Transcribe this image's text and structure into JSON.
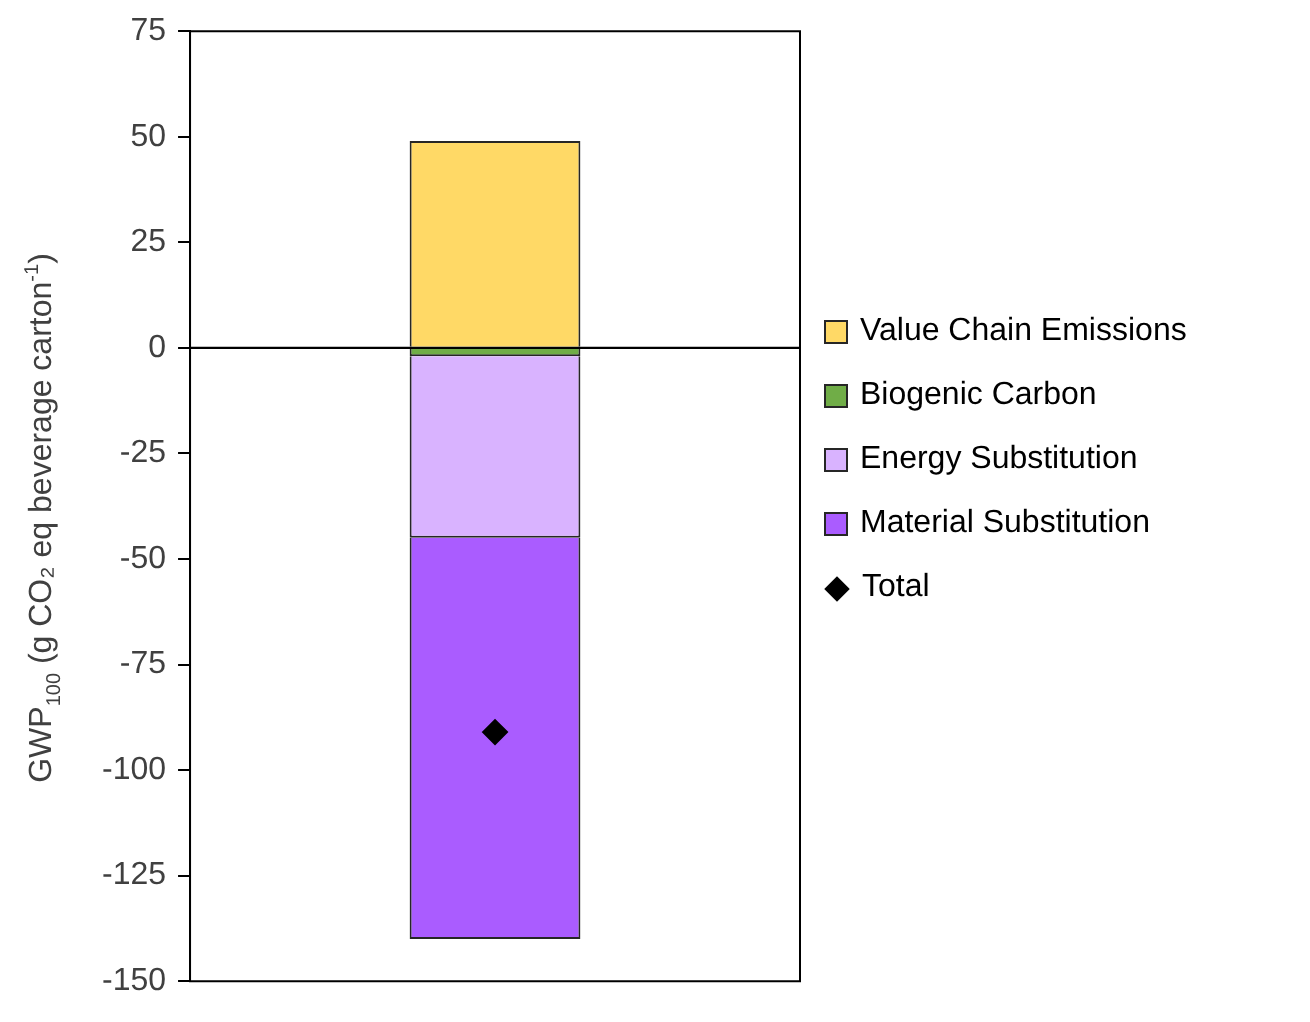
{
  "chart_data": {
    "type": "bar",
    "stacked": true,
    "ylabel": "GWP$_{100}$ (g CO₂ eq beverage carton$^{-1}$)",
    "categories": [
      null
    ],
    "series": [
      {
        "name": "Value Chain Emissions",
        "color": "#ffd966",
        "values": [
          49
        ]
      },
      {
        "name": "Biogenic Carbon",
        "color": "#70ad47",
        "values": [
          -2
        ]
      },
      {
        "name": "Energy Substitution",
        "color": "#d9b3ff",
        "values": [
          -43
        ]
      },
      {
        "name": "Material Substitution",
        "color": "#aa5cff",
        "values": [
          -95
        ]
      },
      {
        "name": "Total",
        "type": "scatter",
        "color": "#000000",
        "marker": "diamond",
        "values": [
          -91
        ]
      }
    ],
    "ylim": [
      -150,
      75
    ],
    "yticks": [
      -150,
      -125,
      -100,
      -75,
      -50,
      -25,
      0,
      25,
      50,
      75
    ],
    "grid": false,
    "legend": "right",
    "ref_lines": [
      {
        "axis": "y",
        "value": 0,
        "color": "#000000"
      }
    ]
  }
}
